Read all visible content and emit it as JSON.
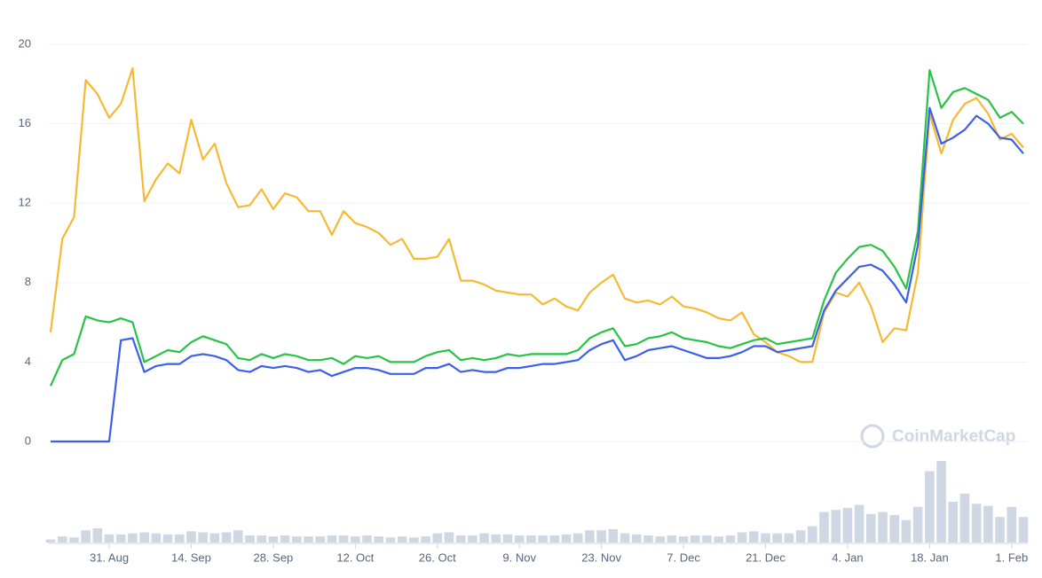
{
  "chart_data": {
    "type": "line",
    "watermark": "CoinMarketCap",
    "categories": [
      null,
      null,
      null,
      null,
      null,
      "31. Aug",
      null,
      null,
      null,
      null,
      null,
      null,
      "14. Sep",
      null,
      null,
      null,
      null,
      null,
      null,
      "28. Sep",
      null,
      null,
      null,
      null,
      null,
      null,
      "12. Oct",
      null,
      null,
      null,
      null,
      null,
      null,
      "26. Oct",
      null,
      null,
      null,
      null,
      null,
      null,
      "9. Nov",
      null,
      null,
      null,
      null,
      null,
      null,
      "23. Nov",
      null,
      null,
      null,
      null,
      null,
      null,
      "7. Dec",
      null,
      null,
      null,
      null,
      null,
      null,
      "21. Dec",
      null,
      null,
      null,
      null,
      null,
      null,
      "4. Jan",
      null,
      null,
      null,
      null,
      null,
      null,
      "18. Jan",
      null,
      null,
      null,
      null,
      null,
      null,
      "1. Feb",
      null
    ],
    "series": [
      {
        "color": "#f6b932",
        "values": [
          5.5,
          10.2,
          11.3,
          18.2,
          17.5,
          16.3,
          17.0,
          18.8,
          12.1,
          13.2,
          14.0,
          13.5,
          16.2,
          14.2,
          15.0,
          13.0,
          11.8,
          11.9,
          12.7,
          11.7,
          12.5,
          12.3,
          11.6,
          11.6,
          10.4,
          11.6,
          11.0,
          10.8,
          10.5,
          9.9,
          10.2,
          9.2,
          9.2,
          9.3,
          10.2,
          8.1,
          8.1,
          7.9,
          7.6,
          7.5,
          7.4,
          7.4,
          6.9,
          7.2,
          6.8,
          6.6,
          7.5,
          8.0,
          8.4,
          7.2,
          7.0,
          7.1,
          6.9,
          7.3,
          6.8,
          6.7,
          6.5,
          6.2,
          6.1,
          6.5,
          5.4,
          5.0,
          4.5,
          4.3,
          4.0,
          4.0,
          6.5,
          7.5,
          7.3,
          8.0,
          6.8,
          5.0,
          5.7,
          5.6,
          8.5,
          16.5,
          14.5,
          16.2,
          17.0,
          17.3,
          16.5,
          15.2,
          15.5,
          14.8
        ]
      },
      {
        "color": "#27c345",
        "values": [
          2.8,
          4.1,
          4.4,
          6.3,
          6.1,
          6.0,
          6.2,
          6.0,
          4.0,
          4.3,
          4.6,
          4.5,
          5.0,
          5.3,
          5.1,
          4.9,
          4.2,
          4.1,
          4.4,
          4.2,
          4.4,
          4.3,
          4.1,
          4.1,
          4.2,
          3.9,
          4.3,
          4.2,
          4.3,
          4.0,
          4.0,
          4.0,
          4.3,
          4.5,
          4.6,
          4.1,
          4.2,
          4.1,
          4.2,
          4.4,
          4.3,
          4.4,
          4.4,
          4.4,
          4.4,
          4.6,
          5.2,
          5.5,
          5.7,
          4.8,
          4.9,
          5.2,
          5.3,
          5.5,
          5.2,
          5.1,
          5.0,
          4.8,
          4.7,
          4.9,
          5.1,
          5.2,
          4.9,
          5.0,
          5.1,
          5.2,
          7.1,
          8.5,
          9.2,
          9.8,
          9.9,
          9.6,
          8.8,
          7.7,
          10.6,
          18.7,
          16.8,
          17.6,
          17.8,
          17.5,
          17.2,
          16.3,
          16.6,
          16.0
        ]
      },
      {
        "color": "#3c5fe8",
        "values": [
          0,
          0,
          0,
          0,
          0,
          0,
          5.1,
          5.2,
          3.5,
          3.8,
          3.9,
          3.9,
          4.3,
          4.4,
          4.3,
          4.1,
          3.6,
          3.5,
          3.8,
          3.7,
          3.8,
          3.7,
          3.5,
          3.6,
          3.3,
          3.5,
          3.7,
          3.7,
          3.6,
          3.4,
          3.4,
          3.4,
          3.7,
          3.7,
          3.9,
          3.5,
          3.6,
          3.5,
          3.5,
          3.7,
          3.7,
          3.8,
          3.9,
          3.9,
          4.0,
          4.1,
          4.6,
          4.9,
          5.1,
          4.1,
          4.3,
          4.6,
          4.7,
          4.8,
          4.6,
          4.4,
          4.2,
          4.2,
          4.3,
          4.5,
          4.8,
          4.8,
          4.5,
          4.6,
          4.7,
          4.8,
          6.6,
          7.6,
          8.2,
          8.8,
          8.9,
          8.6,
          7.9,
          7.0,
          9.9,
          16.8,
          15.0,
          15.3,
          15.7,
          16.4,
          16.0,
          15.3,
          15.2,
          14.5
        ]
      }
    ],
    "volume": {
      "color": "#cfd6e4",
      "values": [
        3,
        6,
        5,
        12,
        14,
        8,
        8,
        9,
        10,
        9,
        8,
        8,
        11,
        10,
        9,
        10,
        12,
        7,
        7,
        6,
        7,
        6,
        6,
        6,
        7,
        7,
        6,
        7,
        6,
        5,
        6,
        5,
        6,
        9,
        10,
        7,
        7,
        9,
        8,
        8,
        7,
        7,
        7,
        7,
        8,
        9,
        12,
        12,
        13,
        9,
        8,
        7,
        6,
        7,
        6,
        7,
        7,
        6,
        7,
        10,
        11,
        9,
        9,
        9,
        12,
        16,
        30,
        32,
        34,
        37,
        28,
        30,
        27,
        22,
        35,
        70,
        80,
        40,
        48,
        38,
        36,
        25,
        35,
        25
      ]
    },
    "ylim": [
      0,
      20
    ],
    "yticks": [
      0,
      4,
      8,
      12,
      16,
      20
    ],
    "grid": true
  }
}
